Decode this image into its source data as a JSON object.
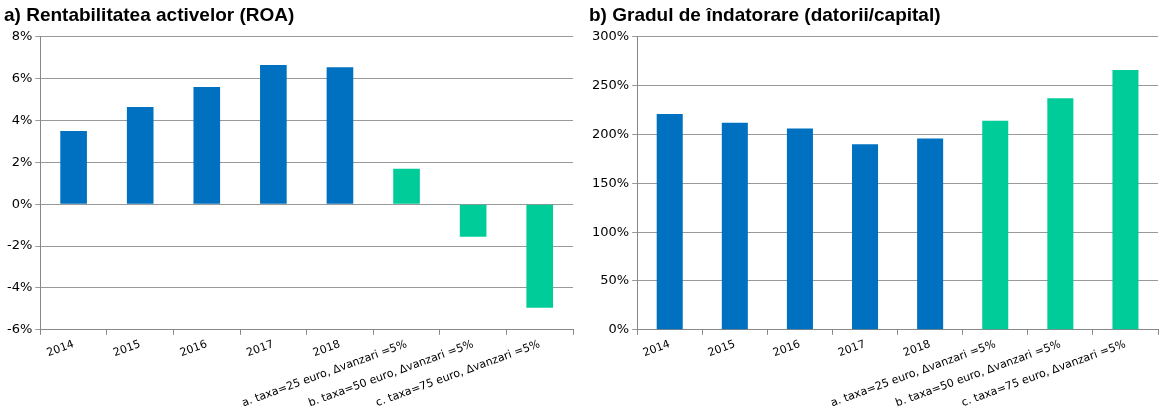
{
  "chart_data": [
    {
      "type": "bar",
      "title": "a) Rentabilitatea activelor (ROA)",
      "categories": [
        "2014",
        "2015",
        "2016",
        "2017",
        "2018",
        "a. taxa=25 euro, Δvanzari =5%",
        "b. taxa=50 euro, Δvanzari =5%",
        "c. taxa=75 euro, Δvanzari =5%"
      ],
      "values": [
        3.5,
        4.65,
        5.6,
        6.65,
        6.55,
        1.7,
        -1.55,
        -4.95
      ],
      "colors": [
        "#0070c0",
        "#0070c0",
        "#0070c0",
        "#0070c0",
        "#0070c0",
        "#00cc99",
        "#00cc99",
        "#00cc99"
      ],
      "ylim": [
        -6,
        8
      ],
      "yticks": [
        {
          "value": -6,
          "label": "-6%"
        },
        {
          "value": -4,
          "label": "-4%"
        },
        {
          "value": -2,
          "label": "-2%"
        },
        {
          "value": 0,
          "label": "0%"
        },
        {
          "value": 2,
          "label": "2%"
        },
        {
          "value": 4,
          "label": "4%"
        },
        {
          "value": 6,
          "label": "6%"
        },
        {
          "value": 8,
          "label": "8%"
        }
      ],
      "grid": "y"
    },
    {
      "type": "bar",
      "title": "b) Gradul de îndatorare (datorii/capital)",
      "categories": [
        "2014",
        "2015",
        "2016",
        "2017",
        "2018",
        "a. taxa=25 euro, Δvanzari =5%",
        "b. taxa=50 euro, Δvanzari =5%",
        "c. taxa=75 euro, Δvanzari =5%"
      ],
      "values": [
        221,
        212,
        206,
        190,
        196,
        214,
        237,
        266
      ],
      "colors": [
        "#0070c0",
        "#0070c0",
        "#0070c0",
        "#0070c0",
        "#0070c0",
        "#00cc99",
        "#00cc99",
        "#00cc99"
      ],
      "ylim": [
        0,
        300
      ],
      "yticks": [
        {
          "value": 0,
          "label": "0%"
        },
        {
          "value": 50,
          "label": "50%"
        },
        {
          "value": 100,
          "label": "100%"
        },
        {
          "value": 150,
          "label": "150%"
        },
        {
          "value": 200,
          "label": "200%"
        },
        {
          "value": 250,
          "label": "250%"
        },
        {
          "value": 300,
          "label": "300%"
        }
      ],
      "grid": "y"
    }
  ]
}
